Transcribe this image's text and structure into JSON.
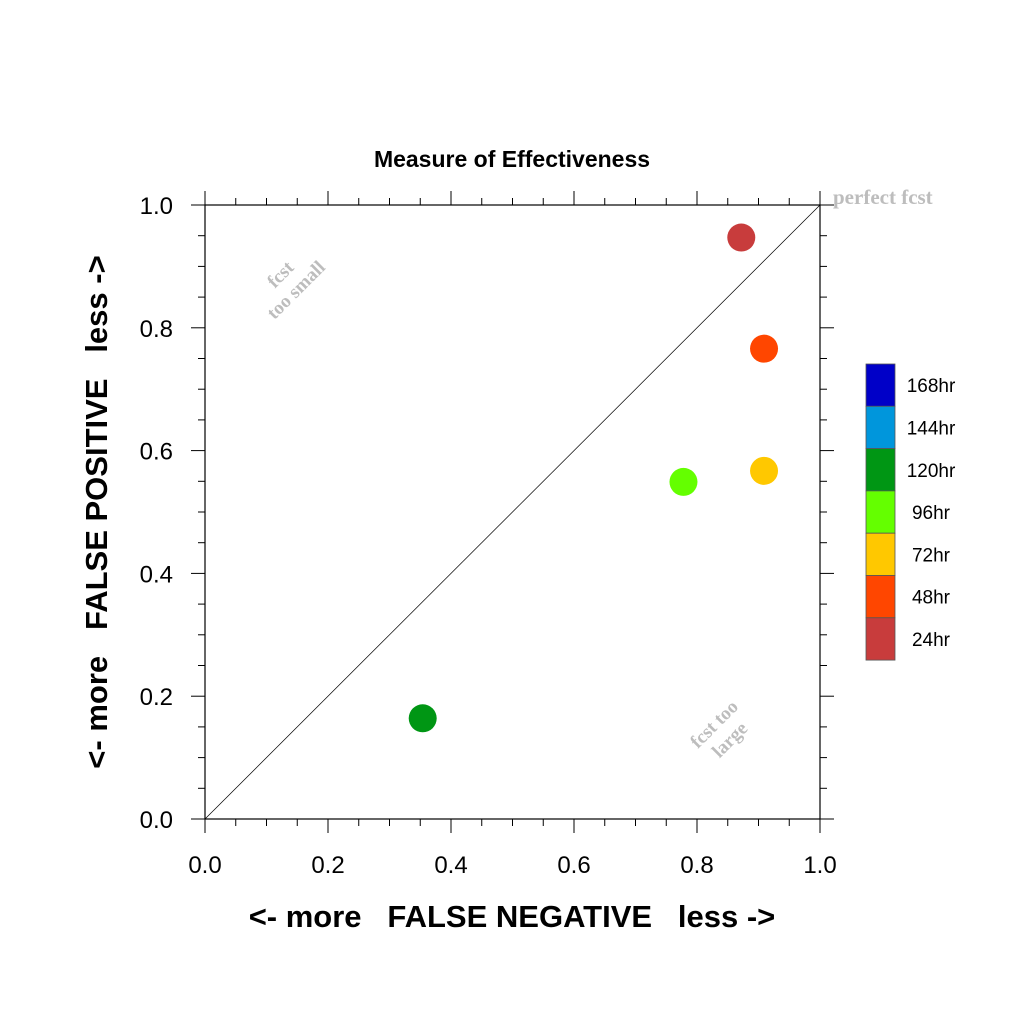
{
  "chart_data": {
    "type": "scatter",
    "title": "Measure of Effectiveness",
    "xlabel": "<- more   FALSE NEGATIVE   less ->",
    "ylabel": "<- more   FALSE POSITIVE   less ->",
    "xlim": [
      0.0,
      1.0
    ],
    "ylim": [
      0.0,
      1.0
    ],
    "x_ticks": [
      "0.0",
      "0.2",
      "0.4",
      "0.6",
      "0.8",
      "1.0"
    ],
    "y_ticks": [
      "0.0",
      "0.2",
      "0.4",
      "0.6",
      "0.8",
      "1.0"
    ],
    "grid": false,
    "annotations": {
      "perfect": "perfect fcst",
      "upper_left_line1": "fcst",
      "upper_left_line2": "too small",
      "lower_right_line1": "fcst too",
      "lower_right_line2": "large"
    },
    "legend": {
      "placement": "right",
      "entries": [
        {
          "label": "168hr",
          "color": "#0000c8"
        },
        {
          "label": "144hr",
          "color": "#0096dc"
        },
        {
          "label": "120hr",
          "color": "#009614"
        },
        {
          "label": "96hr",
          "color": "#64ff00"
        },
        {
          "label": "72hr",
          "color": "#ffc800"
        },
        {
          "label": "48hr",
          "color": "#ff4600"
        },
        {
          "label": "24hr",
          "color": "#c83c3c"
        }
      ]
    },
    "points": [
      {
        "label": "24hr",
        "x": 0.872,
        "y": 0.947,
        "color": "#c83c3c"
      },
      {
        "label": "48hr",
        "x": 0.909,
        "y": 0.766,
        "color": "#ff4600"
      },
      {
        "label": "72hr",
        "x": 0.909,
        "y": 0.567,
        "color": "#ffc800"
      },
      {
        "label": "96hr",
        "x": 0.778,
        "y": 0.549,
        "color": "#64ff00"
      },
      {
        "label": "120hr",
        "x": 0.354,
        "y": 0.164,
        "color": "#009614"
      }
    ]
  }
}
